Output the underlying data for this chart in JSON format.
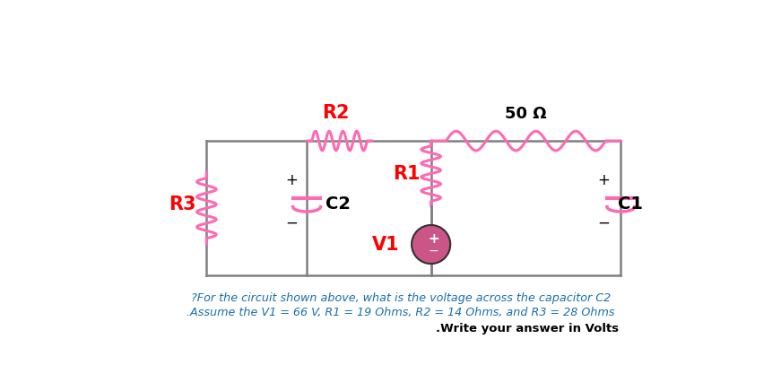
{
  "bg_color": "#ffffff",
  "wire_color": "#808080",
  "resistor_color": "#ff69b4",
  "red_label_color": "#ff0000",
  "black_label_color": "#000000",
  "blue_label_color": "#1a6faf",
  "title_line1": "?For the circuit shown above, what is the voltage across the capacitor C2",
  "title_line2": ".Assume the V1 = 66 V, R1 = 19 Ohms, R2 = 14 Ohms, and R3 = 28 Ohms",
  "title_line3": ".Write your answer in Volts",
  "fig_width": 8.71,
  "fig_height": 4.36,
  "L": 1.55,
  "R": 7.55,
  "T": 3.0,
  "B": 1.05,
  "D1": 3.0,
  "D2": 4.8
}
